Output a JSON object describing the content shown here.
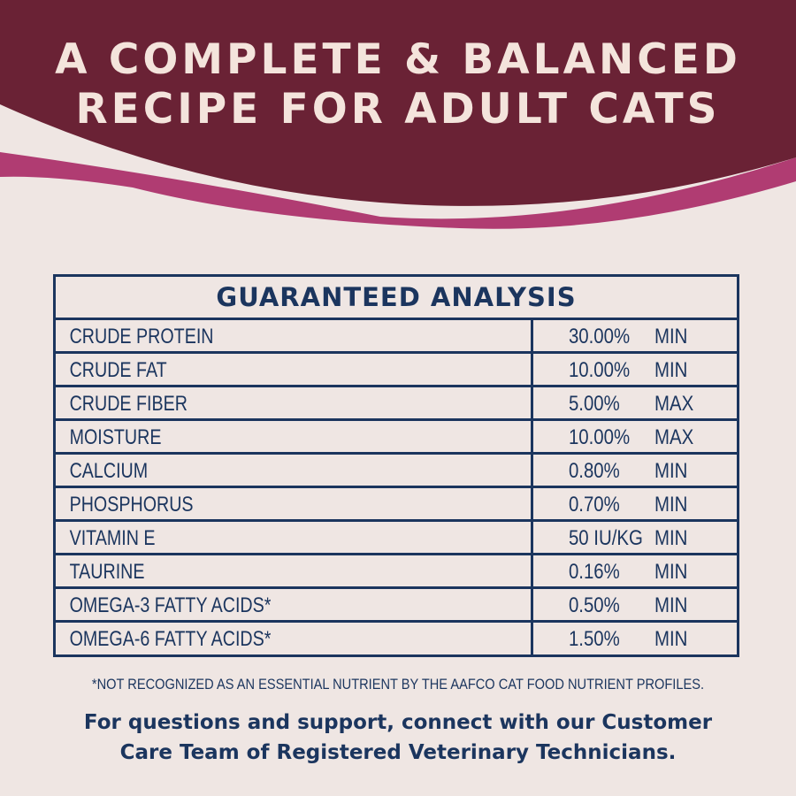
{
  "colors": {
    "header": "#6a2235",
    "accent_stroke": "#b03c72",
    "background": "#efe6e3",
    "navy": "#1b355e",
    "title_text": "#f4e4dc"
  },
  "header": {
    "line1": "A COMPLETE & BALANCED",
    "line2": "RECIPE FOR ADULT CATS"
  },
  "table": {
    "title": "GUARANTEED ANALYSIS",
    "rows": [
      {
        "name": "CRUDE PROTEIN",
        "value": "30.00%",
        "unit": "MIN"
      },
      {
        "name": "CRUDE FAT",
        "value": "10.00%",
        "unit": "MIN"
      },
      {
        "name": "CRUDE FIBER",
        "value": "5.00%",
        "unit": "MAX"
      },
      {
        "name": "MOISTURE",
        "value": "10.00%",
        "unit": "MAX"
      },
      {
        "name": "CALCIUM",
        "value": "0.80%",
        "unit": "MIN"
      },
      {
        "name": "PHOSPHORUS",
        "value": "0.70%",
        "unit": "MIN"
      },
      {
        "name": "VITAMIN E",
        "value": "50 IU/KG",
        "unit": "MIN"
      },
      {
        "name": "TAURINE",
        "value": "0.16%",
        "unit": "MIN"
      },
      {
        "name": "OMEGA-3 FATTY ACIDS*",
        "value": "0.50%",
        "unit": "MIN"
      },
      {
        "name": "OMEGA-6 FATTY ACIDS*",
        "value": "1.50%",
        "unit": "MIN"
      }
    ]
  },
  "footnote": "*NOT RECOGNIZED AS AN ESSENTIAL NUTRIENT BY THE AAFCO CAT FOOD NUTRIENT PROFILES.",
  "support": {
    "line1": "For questions and support, connect with our Customer",
    "line2": "Care Team of Registered Veterinary Technicians."
  }
}
